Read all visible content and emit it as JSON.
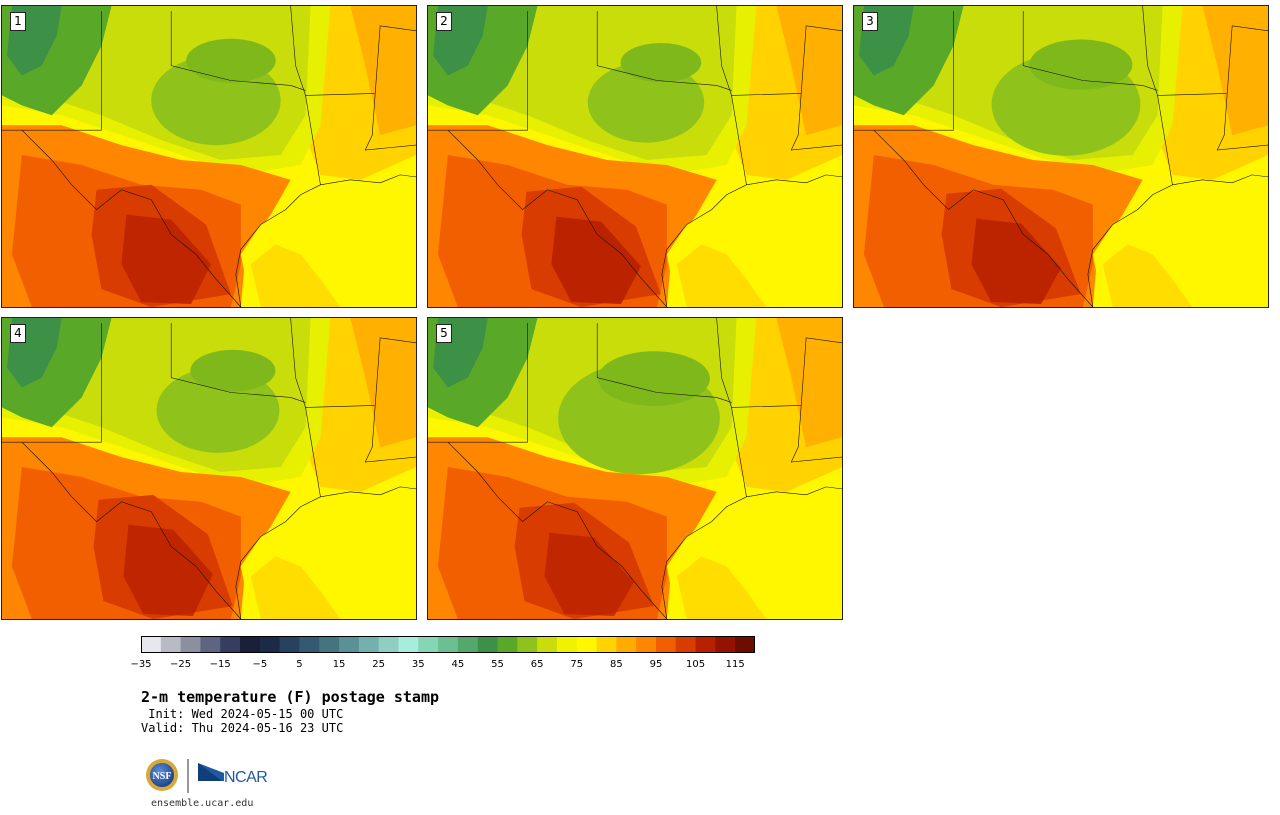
{
  "panels": [
    {
      "label": "1"
    },
    {
      "label": "2"
    },
    {
      "label": "3"
    },
    {
      "label": "4"
    },
    {
      "label": "5"
    }
  ],
  "colorbar": {
    "min": -35,
    "max": 120,
    "step": 5,
    "tick_labels": [
      "−35",
      "−25",
      "−15",
      "−5",
      "5",
      "15",
      "25",
      "35",
      "45",
      "55",
      "65",
      "75",
      "85",
      "95",
      "105",
      "115"
    ],
    "colors": [
      "#e6e8ee",
      "#b8bac4",
      "#8c8fa0",
      "#5f6480",
      "#353e5e",
      "#1a1f3a",
      "#1b2a45",
      "#27425e",
      "#335a70",
      "#44757f",
      "#5a9096",
      "#74b0ad",
      "#8fcfc2",
      "#a6eddc",
      "#84d6b4",
      "#6cbf90",
      "#55a86c",
      "#3d9146",
      "#5aa828",
      "#8fc21a",
      "#c8dd0a",
      "#f0f300",
      "#fff700",
      "#ffd200",
      "#ffac00",
      "#ff8600",
      "#f25f00",
      "#d93c00",
      "#b82100",
      "#931300",
      "#6e0c00"
    ]
  },
  "title": "2-m temperature (F) postage stamp",
  "init": " Init: Wed 2024-05-15 00 UTC",
  "valid": "Valid: Thu 2024-05-16 23 UTC",
  "logos": {
    "nsf": "NSF",
    "ncar": "NCAR"
  },
  "url": "ensemble.ucar.edu"
}
